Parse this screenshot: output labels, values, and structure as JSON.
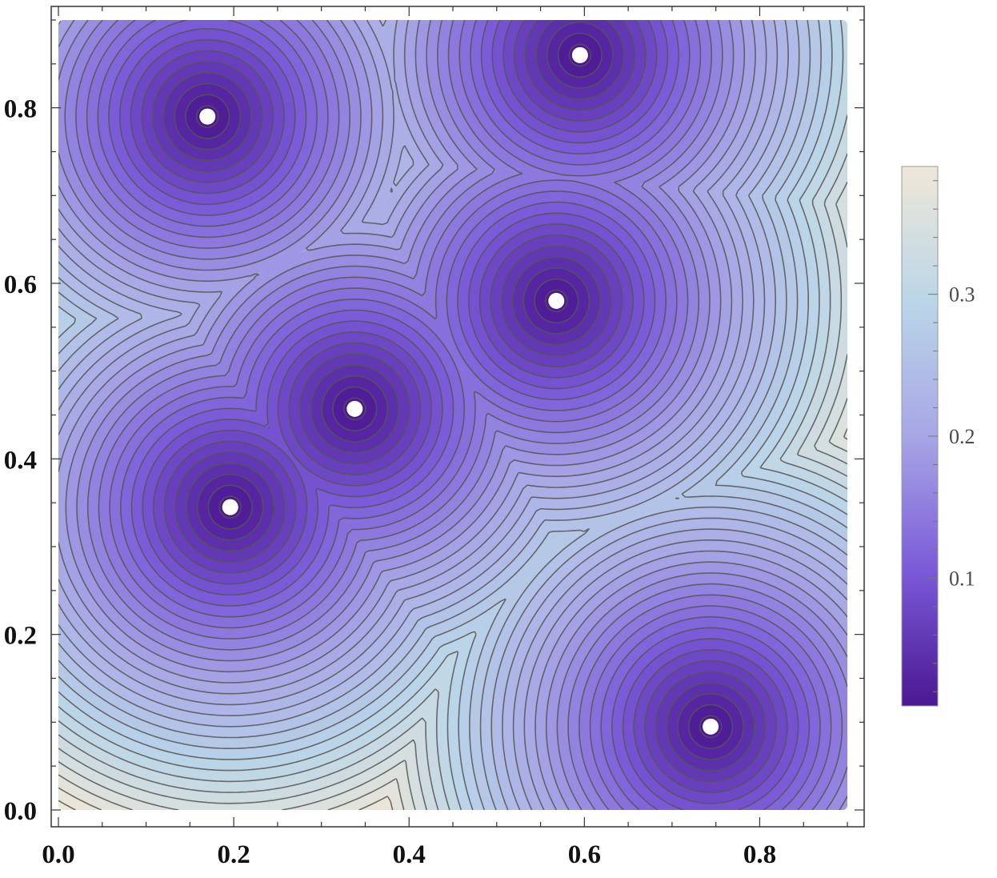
{
  "chart_data": {
    "type": "heatmap",
    "subtype": "contour-density",
    "title": "",
    "xlabel": "",
    "ylabel": "",
    "xlim": [
      0.0,
      0.9
    ],
    "ylim": [
      0.0,
      0.9
    ],
    "x_ticks": [
      "0.0",
      "0.2",
      "0.4",
      "0.6",
      "0.8"
    ],
    "y_ticks": [
      "0.0",
      "0.2",
      "0.4",
      "0.6",
      "0.8"
    ],
    "x_tick_values": [
      0.0,
      0.2,
      0.4,
      0.6,
      0.8
    ],
    "y_tick_values": [
      0.0,
      0.2,
      0.4,
      0.6,
      0.8
    ],
    "points": [
      {
        "x": 0.17,
        "y": 0.79
      },
      {
        "x": 0.595,
        "y": 0.86
      },
      {
        "x": 0.568,
        "y": 0.58
      },
      {
        "x": 0.338,
        "y": 0.457
      },
      {
        "x": 0.196,
        "y": 0.345
      },
      {
        "x": 0.744,
        "y": 0.095
      }
    ],
    "field": "distance to nearest point",
    "contour_step": 0.0125,
    "colorbar": {
      "range": [
        0.01,
        0.39
      ],
      "ticks": [
        "0.1",
        "0.2",
        "0.3"
      ],
      "tick_values": [
        0.1,
        0.2,
        0.3
      ],
      "colors": [
        "#4b1792",
        "#7a5ad8",
        "#a8a6e6",
        "#bad6e8",
        "#efe7d8"
      ]
    },
    "point_color": "#ffffff",
    "contour_color": "#555555"
  }
}
